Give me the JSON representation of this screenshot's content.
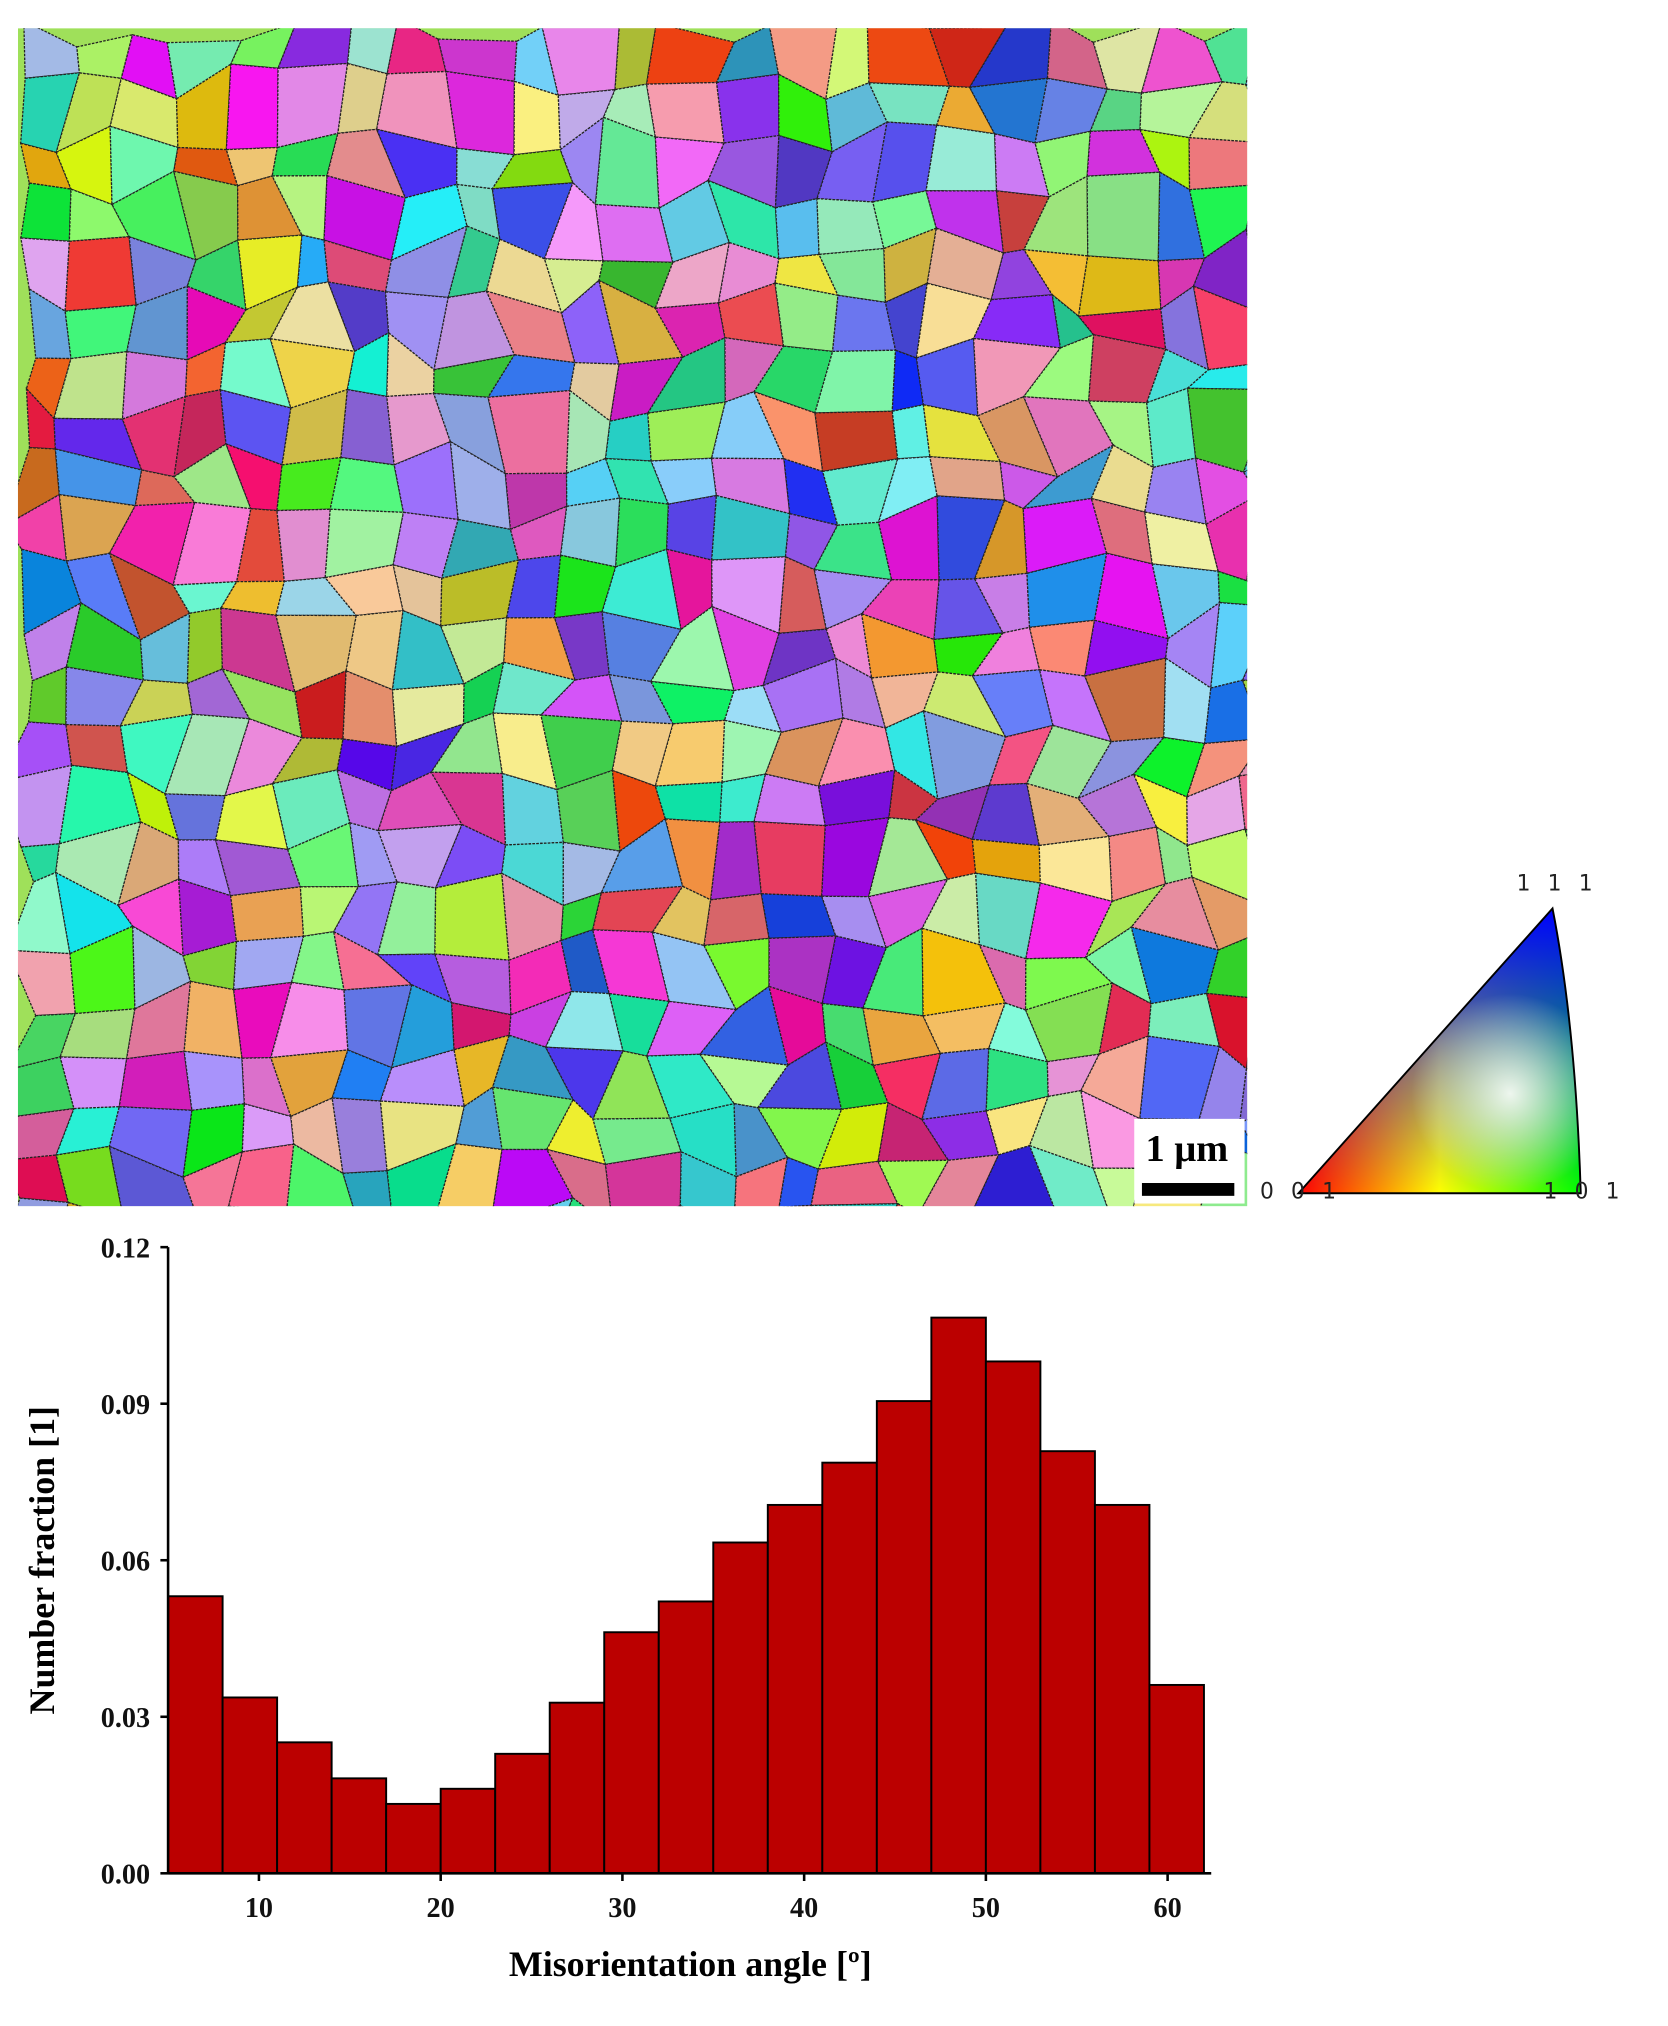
{
  "figure": {
    "scale_bar": "1 μm",
    "ipf_legend": {
      "corner_001": "0 0 1",
      "corner_101": "1 0 1",
      "corner_111": "1 1 1"
    }
  },
  "chart_data": {
    "type": "histogram",
    "x_label": "Misorientation angle  [º]",
    "y_label": "Number fraction [1]",
    "bins": [
      5,
      8,
      11,
      14,
      17,
      20,
      23,
      26,
      29,
      32,
      35,
      38,
      41,
      44,
      47,
      50,
      53,
      56,
      59,
      62
    ],
    "values": [
      0.0531,
      0.0337,
      0.0251,
      0.0182,
      0.0133,
      0.0162,
      0.0229,
      0.0327,
      0.0462,
      0.0521,
      0.0634,
      0.0706,
      0.0787,
      0.0905,
      0.1065,
      0.0981,
      0.0809,
      0.0706,
      0.0361
    ],
    "color": "#bb0000",
    "xlim": [
      5,
      62.4
    ],
    "xticks": [
      10,
      20,
      30,
      40,
      50,
      60
    ],
    "ylim": [
      0,
      0.12
    ],
    "yticks": [
      {
        "value": 0,
        "label": "0.00"
      },
      0.03,
      0.06,
      0.09,
      0.12
    ]
  }
}
